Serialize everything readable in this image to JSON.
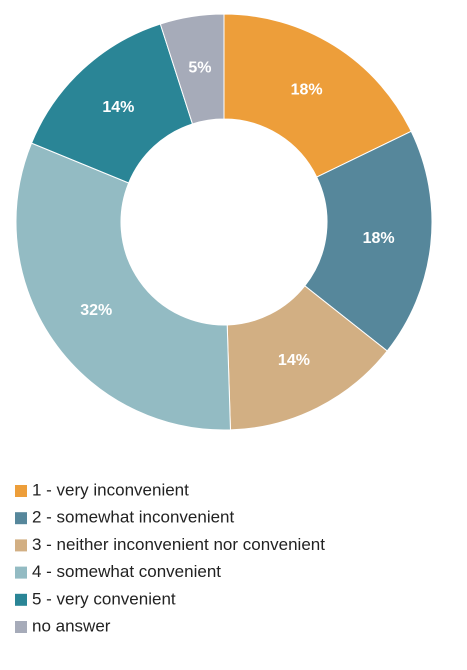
{
  "chart_data": {
    "type": "donut",
    "categories": [
      "1 - very inconvenient",
      "2 - somewhat inconvenient",
      "3 - neither inconvenient nor convenient",
      "4 - somewhat convenient",
      "5 - very convenient",
      "no answer"
    ],
    "values": [
      18,
      18,
      14,
      32,
      14,
      5
    ],
    "value_labels": [
      "18%",
      "18%",
      "14%",
      "32%",
      "14%",
      "5%"
    ],
    "colors": [
      "#ed9e3a",
      "#56879b",
      "#d2af83",
      "#93bbc3",
      "#2a8596",
      "#a6abb9"
    ],
    "legend": "bottom"
  }
}
